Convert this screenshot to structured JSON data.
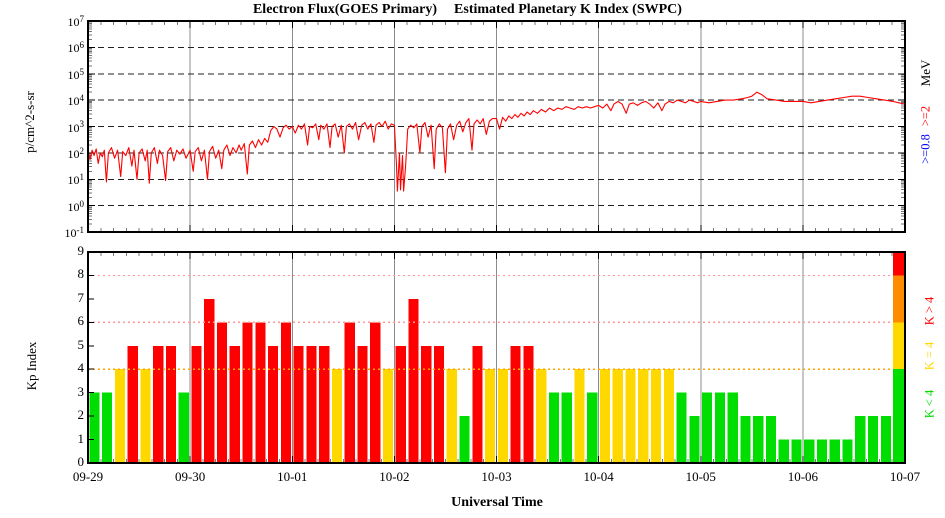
{
  "titles": {
    "flux": "Electron Flux(GOES Primary)",
    "kp": "Estimated Planetary K Index (SWPC)"
  },
  "flux_panel": {
    "ylabel": "p/cm^2-s-sr",
    "unit_label": "MeV",
    "series_labels": [
      {
        "text": ">=2",
        "color": "#ff0000"
      },
      {
        "text": ">=0.8",
        "color": "#0000ff"
      }
    ],
    "y_tick_exponents": [
      7,
      6,
      5,
      4,
      3,
      2,
      1,
      0,
      -1
    ]
  },
  "kp_panel": {
    "ylabel": "Kp Index",
    "y_ticks": [
      0,
      1,
      2,
      3,
      4,
      5,
      6,
      7,
      8,
      9
    ],
    "legend": [
      {
        "text": "K > 4",
        "color": "#ff0000"
      },
      {
        "text": "K = 4",
        "color": "#ffd800"
      },
      {
        "text": "K < 4",
        "color": "#00dd00"
      }
    ],
    "threshold_lines": [
      {
        "kp": 4,
        "color": "#ffa500"
      },
      {
        "kp": 6,
        "color": "#ff9999"
      },
      {
        "kp": 8,
        "color": "#ff9999"
      }
    ],
    "colorbar": [
      {
        "from": 0,
        "to": 4,
        "color": "#00dd00"
      },
      {
        "from": 4,
        "to": 6,
        "color": "#ffd800"
      },
      {
        "from": 6,
        "to": 8,
        "color": "#ff8c00"
      },
      {
        "from": 8,
        "to": 9,
        "color": "#ff0000"
      }
    ]
  },
  "x_axis": {
    "day_labels": [
      "09-29",
      "09-30",
      "10-01",
      "10-02",
      "10-03",
      "10-04",
      "10-05",
      "10-06",
      "10-07"
    ],
    "title": "Universal Time"
  },
  "colors": {
    "flux_line": "#ff0000",
    "grid_day": "#8c8c8c",
    "grid_decade": "#222222",
    "frame": "#000000",
    "tick_minor": "#777777",
    "tick_major": "#000000"
  },
  "chart_data": [
    {
      "type": "line",
      "title": "Electron Flux(GOES Primary)",
      "ylabel": "p/cm^2-s-sr",
      "y_scale": "log10",
      "ylim_log10": [
        -1,
        7
      ],
      "x_unit": "days after 09-29 00:00 UT",
      "x_range_labels": [
        "09-29",
        "10-07"
      ],
      "series": [
        {
          "name": ">=2 MeV",
          "color": "#ff0000",
          "points": [
            [
              0,
              2.05
            ],
            [
              0.02,
              1.75
            ],
            [
              0.04,
              2.1
            ],
            [
              0.06,
              1.9
            ],
            [
              0.08,
              2.15
            ],
            [
              0.1,
              1.6
            ],
            [
              0.12,
              2.0
            ],
            [
              0.14,
              1.85
            ],
            [
              0.16,
              2.1
            ],
            [
              0.18,
              0.9
            ],
            [
              0.2,
              2.0
            ],
            [
              0.23,
              2.2
            ],
            [
              0.26,
              1.8
            ],
            [
              0.29,
              2.1
            ],
            [
              0.32,
              1.1
            ],
            [
              0.34,
              2.05
            ],
            [
              0.37,
              1.9
            ],
            [
              0.4,
              2.2
            ],
            [
              0.43,
              1.5
            ],
            [
              0.45,
              2.1
            ],
            [
              0.48,
              1.0
            ],
            [
              0.5,
              2.0
            ],
            [
              0.53,
              2.15
            ],
            [
              0.56,
              1.7
            ],
            [
              0.58,
              2.1
            ],
            [
              0.6,
              0.85
            ],
            [
              0.62,
              2.0
            ],
            [
              0.65,
              2.2
            ],
            [
              0.68,
              1.6
            ],
            [
              0.7,
              2.1
            ],
            [
              0.73,
              1.9
            ],
            [
              0.76,
              0.95
            ],
            [
              0.78,
              2.05
            ],
            [
              0.81,
              2.2
            ],
            [
              0.84,
              1.7
            ],
            [
              0.87,
              2.1
            ],
            [
              0.9,
              1.95
            ],
            [
              0.93,
              2.15
            ],
            [
              0.96,
              1.8
            ],
            [
              1.0,
              2.1
            ],
            [
              1.03,
              1.3
            ],
            [
              1.05,
              2.05
            ],
            [
              1.08,
              2.2
            ],
            [
              1.11,
              1.7
            ],
            [
              1.14,
              2.1
            ],
            [
              1.17,
              1.0
            ],
            [
              1.19,
              2.05
            ],
            [
              1.22,
              2.25
            ],
            [
              1.25,
              1.8
            ],
            [
              1.28,
              2.1
            ],
            [
              1.31,
              1.4
            ],
            [
              1.33,
              2.1
            ],
            [
              1.36,
              2.3
            ],
            [
              1.39,
              1.9
            ],
            [
              1.42,
              2.2
            ],
            [
              1.45,
              2.0
            ],
            [
              1.48,
              2.3
            ],
            [
              1.5,
              2.1
            ],
            [
              1.53,
              2.35
            ],
            [
              1.56,
              1.2
            ],
            [
              1.58,
              2.3
            ],
            [
              1.61,
              2.45
            ],
            [
              1.64,
              2.2
            ],
            [
              1.67,
              2.5
            ],
            [
              1.7,
              2.3
            ],
            [
              1.73,
              2.55
            ],
            [
              1.76,
              2.4
            ],
            [
              1.79,
              2.85
            ],
            [
              1.82,
              3.0
            ],
            [
              1.85,
              2.9
            ],
            [
              1.88,
              2.6
            ],
            [
              1.91,
              2.95
            ],
            [
              1.94,
              3.05
            ],
            [
              1.97,
              2.9
            ],
            [
              2.0,
              3.0
            ],
            [
              2.03,
              2.75
            ],
            [
              2.06,
              3.05
            ],
            [
              2.09,
              2.9
            ],
            [
              2.12,
              3.1
            ],
            [
              2.15,
              2.3
            ],
            [
              2.17,
              3.0
            ],
            [
              2.2,
              2.95
            ],
            [
              2.23,
              3.1
            ],
            [
              2.26,
              2.5
            ],
            [
              2.28,
              3.05
            ],
            [
              2.31,
              2.9
            ],
            [
              2.34,
              3.1
            ],
            [
              2.37,
              2.2
            ],
            [
              2.39,
              3.0
            ],
            [
              2.42,
              3.1
            ],
            [
              2.45,
              2.6
            ],
            [
              2.48,
              3.05
            ],
            [
              2.51,
              2.0
            ],
            [
              2.53,
              3.0
            ],
            [
              2.56,
              3.1
            ],
            [
              2.59,
              2.9
            ],
            [
              2.62,
              3.15
            ],
            [
              2.65,
              2.5
            ],
            [
              2.68,
              3.05
            ],
            [
              2.71,
              3.15
            ],
            [
              2.74,
              2.9
            ],
            [
              2.77,
              3.1
            ],
            [
              2.8,
              2.4
            ],
            [
              2.82,
              3.05
            ],
            [
              2.85,
              3.15
            ],
            [
              2.88,
              3.0
            ],
            [
              2.91,
              3.2
            ],
            [
              2.94,
              2.9
            ],
            [
              2.97,
              3.1
            ],
            [
              3.0,
              3.05
            ],
            [
              3.02,
              1.6
            ],
            [
              3.03,
              0.55
            ],
            [
              3.05,
              2.0
            ],
            [
              3.06,
              0.6
            ],
            [
              3.08,
              1.9
            ],
            [
              3.09,
              0.55
            ],
            [
              3.11,
              1.5
            ],
            [
              3.13,
              2.9
            ],
            [
              3.16,
              3.05
            ],
            [
              3.19,
              2.95
            ],
            [
              3.22,
              3.1
            ],
            [
              3.25,
              2.0
            ],
            [
              3.27,
              3.0
            ],
            [
              3.3,
              3.15
            ],
            [
              3.33,
              2.6
            ],
            [
              3.36,
              3.05
            ],
            [
              3.39,
              1.4
            ],
            [
              3.41,
              2.9
            ],
            [
              3.44,
              3.1
            ],
            [
              3.47,
              2.95
            ],
            [
              3.5,
              1.25
            ],
            [
              3.52,
              2.9
            ],
            [
              3.55,
              3.1
            ],
            [
              3.58,
              2.5
            ],
            [
              3.61,
              3.05
            ],
            [
              3.64,
              3.2
            ],
            [
              3.67,
              2.8
            ],
            [
              3.7,
              3.15
            ],
            [
              3.73,
              3.3
            ],
            [
              3.76,
              2.1
            ],
            [
              3.78,
              3.1
            ],
            [
              3.81,
              3.25
            ],
            [
              3.84,
              3.1
            ],
            [
              3.87,
              3.3
            ],
            [
              3.9,
              2.7
            ],
            [
              3.93,
              3.2
            ],
            [
              3.96,
              3.3
            ],
            [
              4.0,
              3.3
            ],
            [
              4.03,
              2.9
            ],
            [
              4.06,
              3.35
            ],
            [
              4.09,
              3.2
            ],
            [
              4.12,
              3.4
            ],
            [
              4.15,
              3.3
            ],
            [
              4.18,
              3.45
            ],
            [
              4.21,
              3.35
            ],
            [
              4.24,
              3.5
            ],
            [
              4.27,
              3.4
            ],
            [
              4.3,
              3.55
            ],
            [
              4.33,
              3.45
            ],
            [
              4.36,
              3.6
            ],
            [
              4.4,
              3.5
            ],
            [
              4.44,
              3.65
            ],
            [
              4.48,
              3.55
            ],
            [
              4.52,
              3.7
            ],
            [
              4.56,
              3.6
            ],
            [
              4.6,
              3.7
            ],
            [
              4.64,
              3.65
            ],
            [
              4.68,
              3.75
            ],
            [
              4.72,
              3.7
            ],
            [
              4.76,
              3.65
            ],
            [
              4.8,
              3.75
            ],
            [
              4.84,
              3.7
            ],
            [
              4.88,
              3.75
            ],
            [
              4.92,
              3.7
            ],
            [
              4.96,
              3.75
            ],
            [
              5.0,
              3.8
            ],
            [
              5.04,
              3.7
            ],
            [
              5.08,
              3.85
            ],
            [
              5.12,
              3.6
            ],
            [
              5.15,
              3.85
            ],
            [
              5.19,
              3.95
            ],
            [
              5.23,
              3.85
            ],
            [
              5.27,
              3.5
            ],
            [
              5.3,
              3.85
            ],
            [
              5.34,
              3.9
            ],
            [
              5.38,
              3.8
            ],
            [
              5.42,
              3.9
            ],
            [
              5.46,
              3.95
            ],
            [
              5.5,
              3.85
            ],
            [
              5.54,
              3.7
            ],
            [
              5.58,
              3.9
            ],
            [
              5.62,
              3.6
            ],
            [
              5.65,
              3.85
            ],
            [
              5.69,
              3.95
            ],
            [
              5.73,
              3.9
            ],
            [
              5.77,
              4.0
            ],
            [
              5.81,
              3.95
            ],
            [
              5.85,
              3.9
            ],
            [
              5.89,
              4.0
            ],
            [
              5.93,
              3.95
            ],
            [
              5.97,
              3.9
            ],
            [
              6.0,
              3.95
            ],
            [
              6.08,
              3.9
            ],
            [
              6.16,
              3.95
            ],
            [
              6.24,
              4.0
            ],
            [
              6.32,
              4.0
            ],
            [
              6.4,
              4.05
            ],
            [
              6.46,
              4.1
            ],
            [
              6.5,
              4.15
            ],
            [
              6.55,
              4.3
            ],
            [
              6.6,
              4.2
            ],
            [
              6.65,
              4.05
            ],
            [
              6.74,
              4.0
            ],
            [
              6.82,
              3.95
            ],
            [
              6.9,
              3.95
            ],
            [
              6.97,
              3.95
            ],
            [
              7.0,
              3.95
            ],
            [
              7.08,
              3.9
            ],
            [
              7.16,
              3.95
            ],
            [
              7.24,
              4.0
            ],
            [
              7.32,
              4.05
            ],
            [
              7.4,
              4.1
            ],
            [
              7.48,
              4.15
            ],
            [
              7.56,
              4.15
            ],
            [
              7.64,
              4.1
            ],
            [
              7.72,
              4.05
            ],
            [
              7.8,
              4.0
            ],
            [
              7.88,
              3.95
            ],
            [
              7.94,
              3.9
            ],
            [
              8.0,
              3.85
            ]
          ]
        }
      ]
    },
    {
      "type": "bar",
      "title": "Estimated Planetary K Index (SWPC)",
      "ylabel": "Kp Index",
      "ylim": [
        0,
        9
      ],
      "bar_interval_hours": 3,
      "start_day": "09-29",
      "days": [
        "09-29",
        "09-30",
        "10-01",
        "10-02",
        "10-03",
        "10-04",
        "10-05",
        "10-06"
      ],
      "values": [
        3,
        3,
        4,
        5,
        4,
        5,
        5,
        3,
        5,
        7,
        6,
        5,
        6,
        6,
        5,
        6,
        5,
        5,
        5,
        4,
        6,
        5,
        6,
        4,
        5,
        7,
        5,
        5,
        4,
        2,
        5,
        4,
        4,
        5,
        5,
        4,
        3,
        3,
        4,
        3,
        4,
        4,
        4,
        4,
        4,
        4,
        3,
        2,
        3,
        3,
        3,
        2,
        2,
        2,
        1,
        1,
        1,
        1,
        1,
        1,
        2,
        2,
        2,
        2
      ],
      "color_rule": {
        "k_lt_4": "#00dd00",
        "k_eq_4": "#ffd800",
        "k_gt_4": "#ff0000"
      }
    }
  ]
}
